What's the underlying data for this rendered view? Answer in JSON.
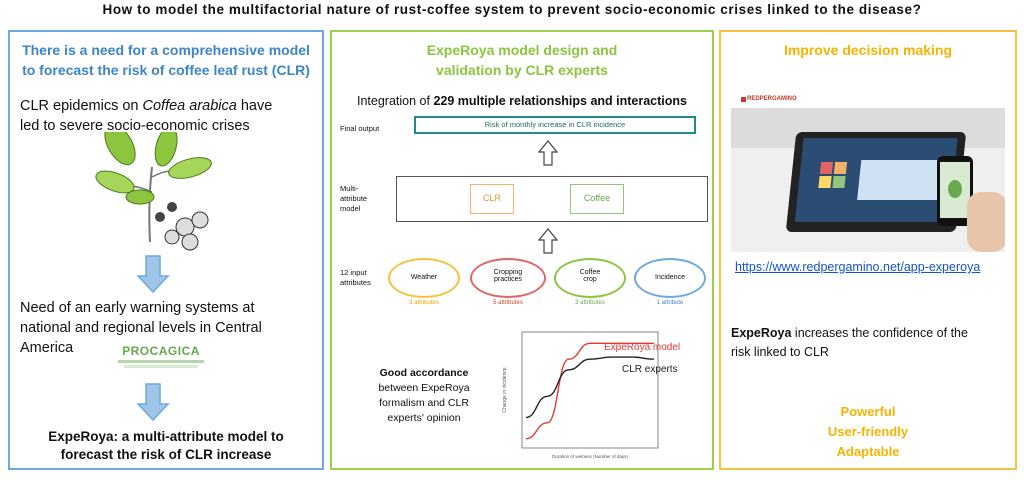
{
  "title": "How to model the multifactorial nature of rust-coffee system to prevent socio-economic crises linked to the disease?",
  "panel1": {
    "title_line1": "There is a need for a comprehensive model",
    "title_line2": "to forecast the risk of coffee leaf rust (CLR)",
    "text1_line1_a": "CLR epidemics on ",
    "text1_line1_b": "Coffea arabica",
    "text1_line1_c": " have",
    "text1_line2": "led to severe socio-economic crises",
    "text2_line1": "Need of an early warning systems at",
    "text2_line2": "national and regional levels in Central",
    "text2_line3": "America",
    "logo_text": "PROCAGICA",
    "conclusion_line1": "ExpeRoya: a multi-attribute model to",
    "conclusion_line2": "forecast the risk of CLR increase",
    "colors": {
      "border": "#6fa8dc",
      "title": "#3d85c6",
      "arrow": "#9fc5e8"
    }
  },
  "panel2": {
    "title_line1": "ExpeRoya model design and",
    "title_line2": "validation by CLR experts",
    "integration_a": "Integration of ",
    "integration_b": "229 multiple relationships and interactions",
    "final_output_label": "Final output",
    "final_output_box": "Risk of monthly increase in CLR incidence",
    "model_label_line1": "Multi-",
    "model_label_line2": "attribute",
    "model_label_line3": "model",
    "box_clr": "CLR",
    "box_coffee": "Coffee",
    "inputs_label_line1": "12 input",
    "inputs_label_line2": "attributes",
    "attributes": [
      {
        "name_line1": "Weather",
        "name_line2": "",
        "count": "3 attributes",
        "color": "#f5c242"
      },
      {
        "name_line1": "Cropping",
        "name_line2": "practices",
        "count": "5 attributes",
        "color": "#e06666"
      },
      {
        "name_line1": "Coffee",
        "name_line2": "crop",
        "count": "3 attributes",
        "color": "#8cc63f"
      },
      {
        "name_line1": "Incidence",
        "name_line2": "",
        "count": "1 attribute",
        "color": "#6fa8dc"
      }
    ],
    "accordance_bold": "Good accordance",
    "accordance_line2": "between ExpeRoya",
    "accordance_line3": "formalism and CLR",
    "accordance_line4": "experts' opinion",
    "legend_model": "ExpeRoya model",
    "legend_experts": "CLR experts",
    "colors": {
      "border": "#9bd04a",
      "title": "#8cc63f",
      "box": "#1f8a8a",
      "clr": "#e69138",
      "coffee": "#6aa84f"
    }
  },
  "chart_data": {
    "type": "line",
    "title": "",
    "xlabel": "Duration of wetness (Number of days)",
    "ylabel": "Change in incidence",
    "series": [
      {
        "name": "ExpeRoya model",
        "color": "#e53935",
        "x": [
          0,
          5,
          10,
          15,
          20,
          25,
          30
        ],
        "y": [
          0.05,
          0.2,
          0.8,
          0.95,
          0.95,
          0.95,
          0.95
        ]
      },
      {
        "name": "CLR experts",
        "color": "#222222",
        "x": [
          0,
          5,
          10,
          15,
          20,
          25,
          30
        ],
        "y": [
          0.25,
          0.45,
          0.7,
          0.8,
          0.82,
          0.82,
          0.8
        ]
      }
    ]
  },
  "panel3": {
    "title": "Improve decision making",
    "site_brand": "REDPERGAMINO",
    "url": "https://www.redpergamino.net/app-experoya",
    "text_bold": "ExpeRoya",
    "text_rest_line1": " increases the confidence of the",
    "text_line2": "risk linked to CLR",
    "qualities": [
      "Powerful",
      "User-friendly",
      "Adaptable"
    ],
    "colors": {
      "border": "#f5c242",
      "title": "#f4b400"
    }
  }
}
